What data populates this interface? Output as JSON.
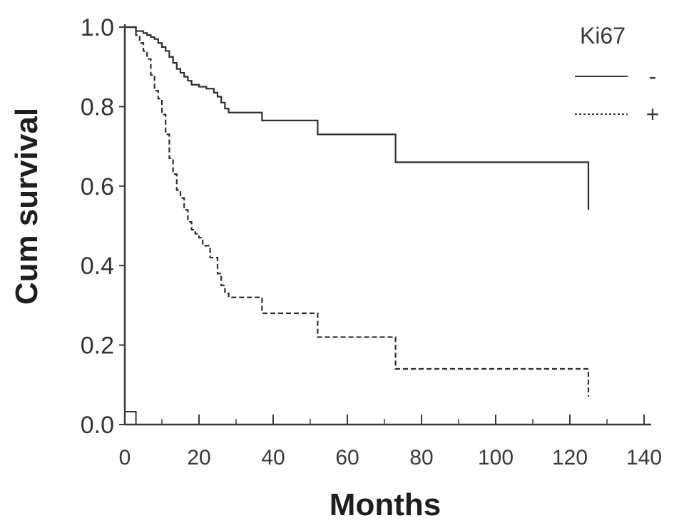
{
  "chart_data": {
    "type": "line",
    "style": "step",
    "xlabel": "Months",
    "ylabel": "Cum survival",
    "xlim": [
      0,
      140
    ],
    "ylim": [
      0,
      1.0
    ],
    "xticks": [
      "0",
      "20",
      "40",
      "60",
      "80",
      "100",
      "120",
      "140"
    ],
    "yticks": [
      "0.0",
      "0.2",
      "0.4",
      "0.6",
      "0.8",
      "1.0"
    ],
    "legend": {
      "title": "Ki67",
      "position": "top-right"
    },
    "series": [
      {
        "name": "-",
        "line_style": "solid",
        "x": [
          0,
          3,
          5,
          6,
          7,
          8,
          9,
          10,
          11,
          12,
          13,
          14,
          15,
          16,
          17,
          18,
          20,
          22,
          24,
          25,
          26,
          27,
          28,
          37,
          52,
          73,
          125
        ],
        "y": [
          1.0,
          0.99,
          0.985,
          0.98,
          0.975,
          0.97,
          0.96,
          0.95,
          0.94,
          0.925,
          0.91,
          0.895,
          0.885,
          0.875,
          0.865,
          0.855,
          0.85,
          0.845,
          0.835,
          0.825,
          0.81,
          0.795,
          0.785,
          0.765,
          0.73,
          0.66,
          0.54
        ]
      },
      {
        "name": "+",
        "line_style": "dashed",
        "x": [
          0,
          3,
          4,
          5,
          6,
          7,
          8,
          9,
          10,
          11,
          12,
          13,
          14,
          15,
          16,
          17,
          18,
          19,
          20,
          21,
          23,
          25,
          26,
          27,
          28,
          37,
          52,
          73,
          125
        ],
        "y": [
          1.0,
          0.98,
          0.96,
          0.94,
          0.92,
          0.88,
          0.84,
          0.82,
          0.78,
          0.73,
          0.67,
          0.63,
          0.59,
          0.57,
          0.54,
          0.51,
          0.49,
          0.48,
          0.47,
          0.45,
          0.42,
          0.38,
          0.35,
          0.33,
          0.32,
          0.28,
          0.22,
          0.14,
          0.07
        ]
      }
    ]
  }
}
